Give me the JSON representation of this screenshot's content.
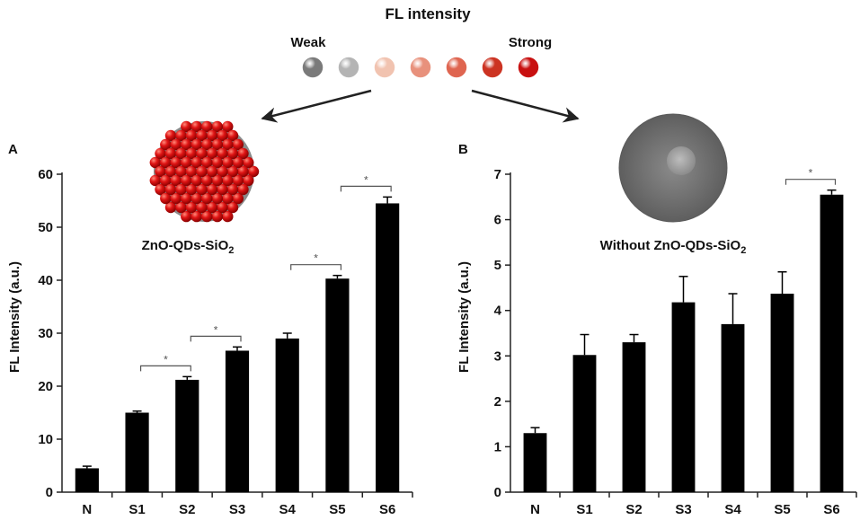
{
  "header": {
    "title": "FL intensity",
    "weak_label": "Weak",
    "strong_label": "Strong",
    "scale_colors": [
      "#7a7a7a",
      "#b4b4b4",
      "#f1c3b0",
      "#e8917c",
      "#df6550",
      "#cc3322",
      "#c81010"
    ]
  },
  "chart_data": [
    {
      "type": "bar",
      "panel_label": "A",
      "particle_label": "ZnO-QDs-SiO",
      "particle_subscript": "2",
      "ylabel": "FL Intensity (a.u.)",
      "xlabel": "",
      "categories": [
        "N",
        "S1",
        "S2",
        "S3",
        "S4",
        "S5",
        "S6"
      ],
      "values": [
        4.5,
        15.0,
        21.2,
        26.7,
        29.0,
        40.3,
        54.5
      ],
      "errors": [
        0.4,
        0.3,
        0.6,
        0.7,
        1.0,
        0.6,
        1.2
      ],
      "ylim": [
        0,
        60
      ],
      "yticks": [
        "0",
        "10",
        "20",
        "30",
        "40",
        "50",
        "60"
      ],
      "significance": [
        {
          "from": 1,
          "to": 2,
          "label": "*"
        },
        {
          "from": 2,
          "to": 3,
          "label": "*"
        },
        {
          "from": 4,
          "to": 5,
          "label": "*"
        },
        {
          "from": 5,
          "to": 6,
          "label": "*"
        }
      ],
      "bar_color": "#000000"
    },
    {
      "type": "bar",
      "panel_label": "B",
      "particle_label": "Without ZnO-QDs-SiO",
      "particle_subscript": "2",
      "ylabel": "FL Intensity (a.u.)",
      "xlabel": "",
      "categories": [
        "N",
        "S1",
        "S2",
        "S3",
        "S4",
        "S5",
        "S6"
      ],
      "values": [
        1.3,
        3.02,
        3.3,
        4.18,
        3.7,
        4.37,
        6.55
      ],
      "errors": [
        0.12,
        0.45,
        0.17,
        0.57,
        0.67,
        0.48,
        0.1
      ],
      "ylim": [
        0,
        7
      ],
      "yticks": [
        "0",
        "1",
        "2",
        "3",
        "4",
        "5",
        "6",
        "7"
      ],
      "significance": [
        {
          "from": 5,
          "to": 6,
          "label": "*"
        }
      ],
      "bar_color": "#000000"
    }
  ]
}
